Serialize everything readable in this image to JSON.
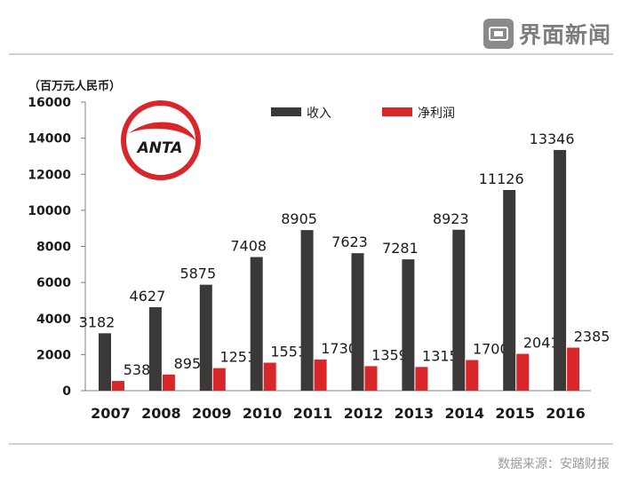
{
  "brand": {
    "name": "界面新闻",
    "icon": "jiemian-logo-icon"
  },
  "source": "数据来源：安踏财报",
  "logo": {
    "text": "ANTA",
    "ring_color": "#d9262a",
    "text_color": "#1a1a1a"
  },
  "colors": {
    "revenue": "#3b3838",
    "profit": "#d9262a",
    "axis": "#7f7f7f",
    "rule": "#a6a6a6"
  },
  "chart_data": {
    "type": "bar",
    "unit_label": "（百万元人民币）",
    "categories": [
      "2007",
      "2008",
      "2009",
      "2010",
      "2011",
      "2012",
      "2013",
      "2014",
      "2015",
      "2016"
    ],
    "series": [
      {
        "name": "收入",
        "values": [
          3182,
          4627,
          5875,
          7408,
          8905,
          7623,
          7281,
          8923,
          11126,
          13346
        ]
      },
      {
        "name": "净利润",
        "values": [
          538,
          895,
          1251,
          1551,
          1730,
          1359,
          1315,
          1700,
          2041,
          2385
        ]
      }
    ],
    "ylim": [
      0,
      16000
    ],
    "yticks": [
      0,
      2000,
      4000,
      6000,
      8000,
      10000,
      12000,
      14000,
      16000
    ],
    "legend_position": "top-center",
    "grid": false
  }
}
